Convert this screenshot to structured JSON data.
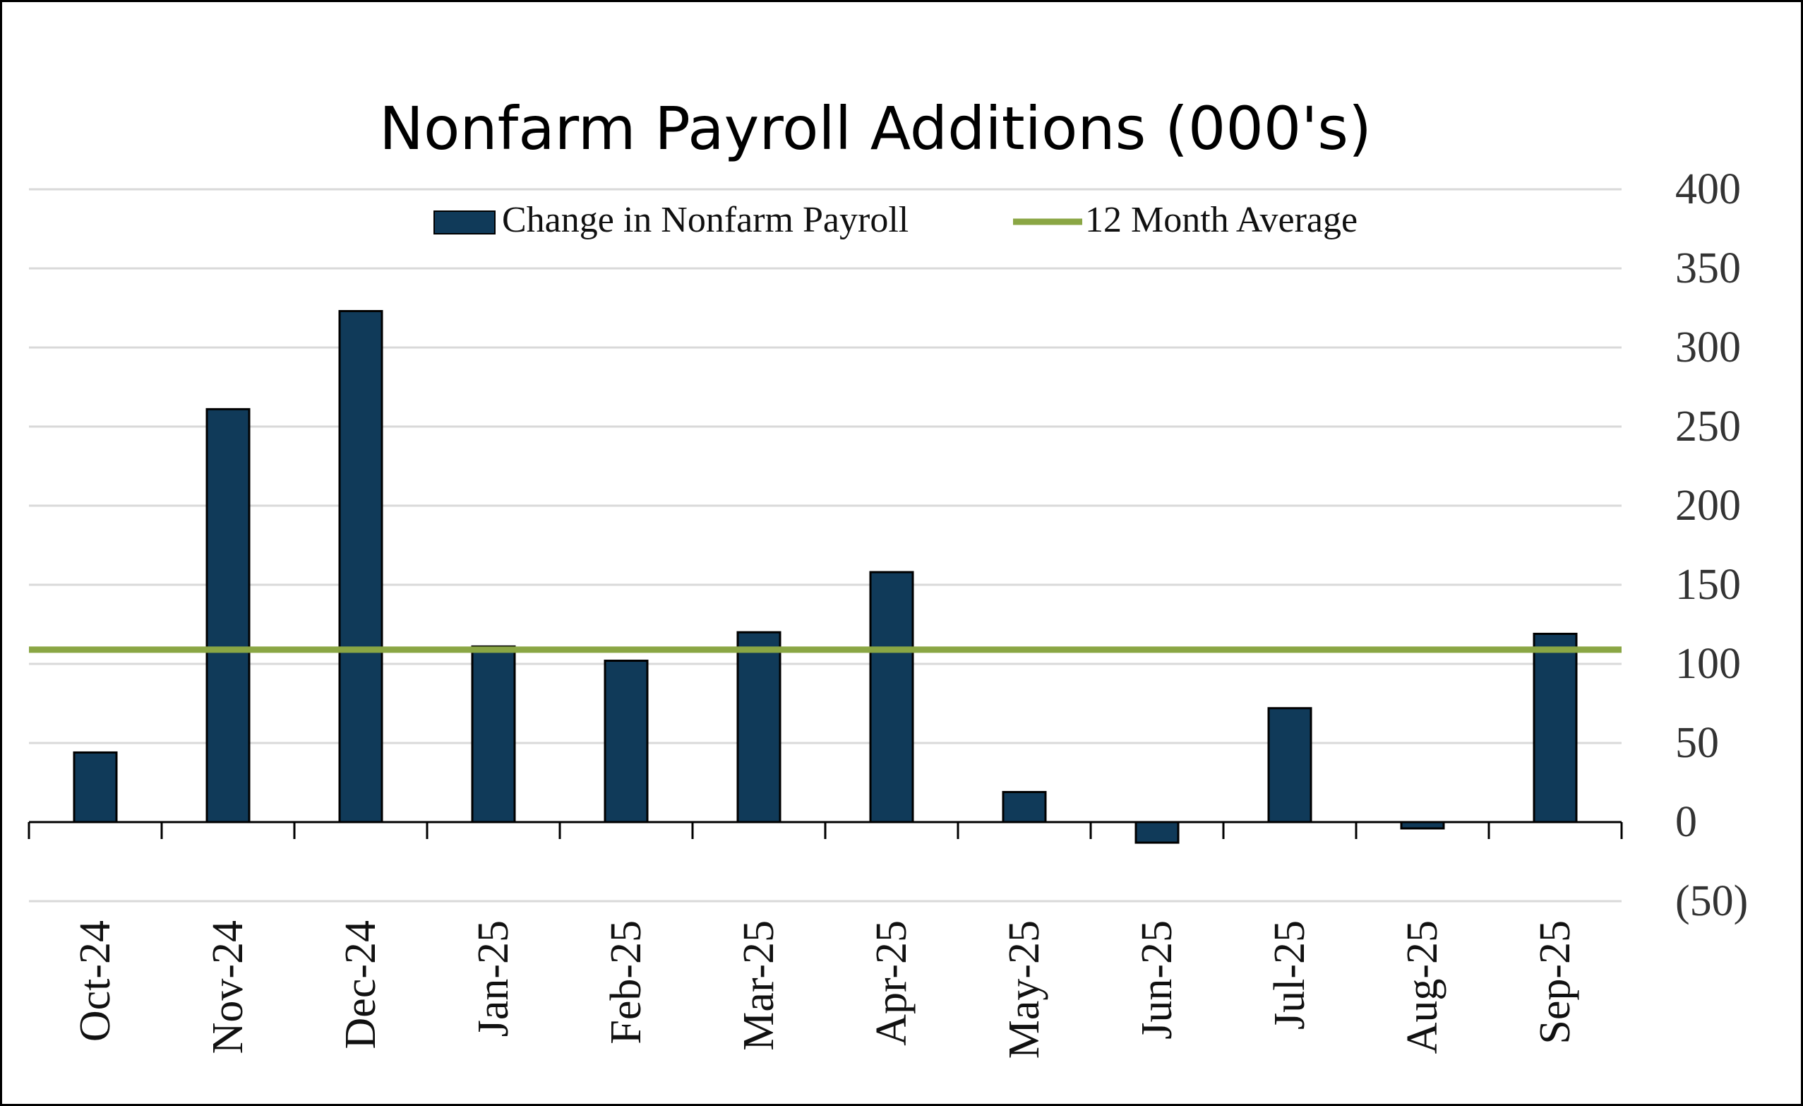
{
  "chart_data": {
    "type": "bar",
    "title": "Nonfarm Payroll Additions (000's)",
    "categories": [
      "Oct-24",
      "Nov-24",
      "Dec-24",
      "Jan-25",
      "Feb-25",
      "Mar-25",
      "Apr-25",
      "May-25",
      "Jun-25",
      "Jul-25",
      "Aug-25",
      "Sep-25"
    ],
    "series": [
      {
        "name": "Change in Nonfarm Payroll",
        "kind": "bar",
        "color": "#103a59",
        "values": [
          44,
          261,
          323,
          111,
          102,
          120,
          158,
          19,
          -13,
          72,
          -4,
          119
        ]
      },
      {
        "name": "12 Month Average",
        "kind": "line",
        "color": "#8aa644",
        "values": [
          109,
          109,
          109,
          109,
          109,
          109,
          109,
          109,
          109,
          109,
          109,
          109
        ]
      }
    ],
    "ylim": [
      -50,
      400
    ],
    "yticks": [
      400,
      350,
      300,
      250,
      200,
      150,
      100,
      50,
      0,
      -50
    ],
    "ytick_labels": [
      "400",
      "350",
      "300",
      "250",
      "200",
      "150",
      "100",
      "50",
      "0",
      "(50)"
    ],
    "y_axis_side": "right",
    "grid": true,
    "legend_position": "top-center"
  }
}
